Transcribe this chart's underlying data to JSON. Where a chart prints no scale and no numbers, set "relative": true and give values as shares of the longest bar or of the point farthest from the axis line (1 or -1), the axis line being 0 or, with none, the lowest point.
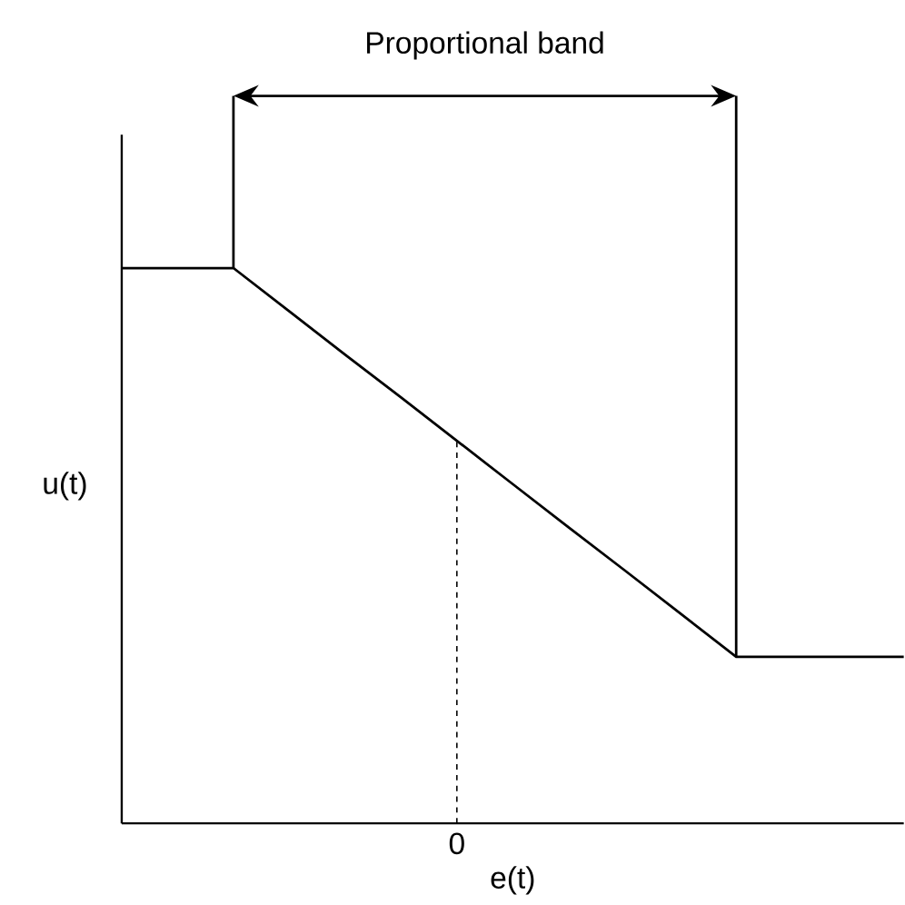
{
  "chart_data": {
    "type": "line",
    "relative": true,
    "xlabel": "e(t)",
    "ylabel": "u(t)",
    "categories": [
      null,
      null,
      null,
      null,
      null,
      null,
      null,
      null,
      null,
      null,
      null,
      null,
      null,
      null,
      null
    ],
    "series": [
      {
        "color": "#000000",
        "values": [
          1.0,
          1.0,
          1.0,
          0.922,
          0.844,
          0.767,
          0.689,
          0.611,
          0.533,
          0.456,
          0.378,
          0.3,
          0.3,
          0.3,
          0.3
        ]
      }
    ],
    "annotations": [
      "Proportional band",
      {
        "text": "0",
        "y": 0.689
      }
    ],
    "marker": "none",
    "line_style": "solid"
  }
}
